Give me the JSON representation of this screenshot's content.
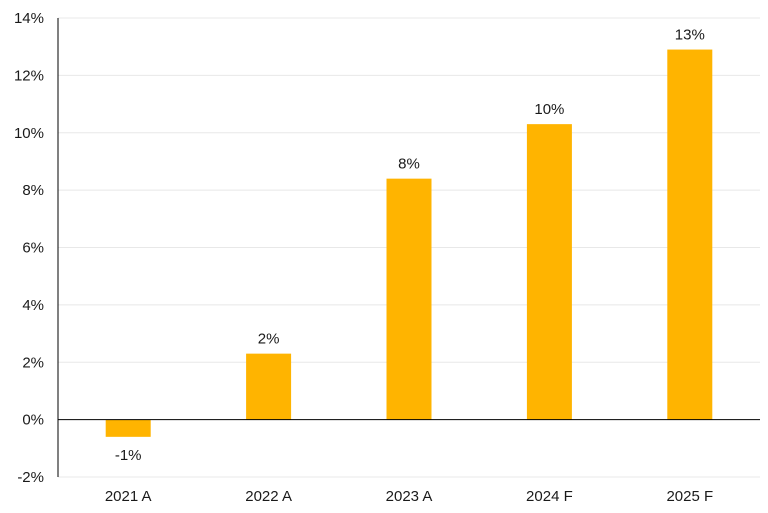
{
  "chart_data": {
    "type": "bar",
    "title": "",
    "xlabel": "",
    "ylabel": "",
    "categories": [
      "2021 A",
      "2022 A",
      "2023 A",
      "2024 F",
      "2025 F"
    ],
    "values": [
      -0.6,
      2.3,
      8.4,
      10.3,
      12.9
    ],
    "data_labels": [
      "-1%",
      "2%",
      "8%",
      "10%",
      "13%"
    ],
    "ylim": [
      -2,
      14
    ],
    "yticks": [
      -2,
      0,
      2,
      4,
      6,
      8,
      10,
      12,
      14
    ],
    "ytick_labels": [
      "-2%",
      "0%",
      "2%",
      "4%",
      "6%",
      "8%",
      "10%",
      "12%",
      "14%"
    ],
    "grid": true,
    "legend": "none",
    "colors": {
      "bar": "#FFB400",
      "grid": "#e8e8e8",
      "axis": "#000000"
    }
  }
}
